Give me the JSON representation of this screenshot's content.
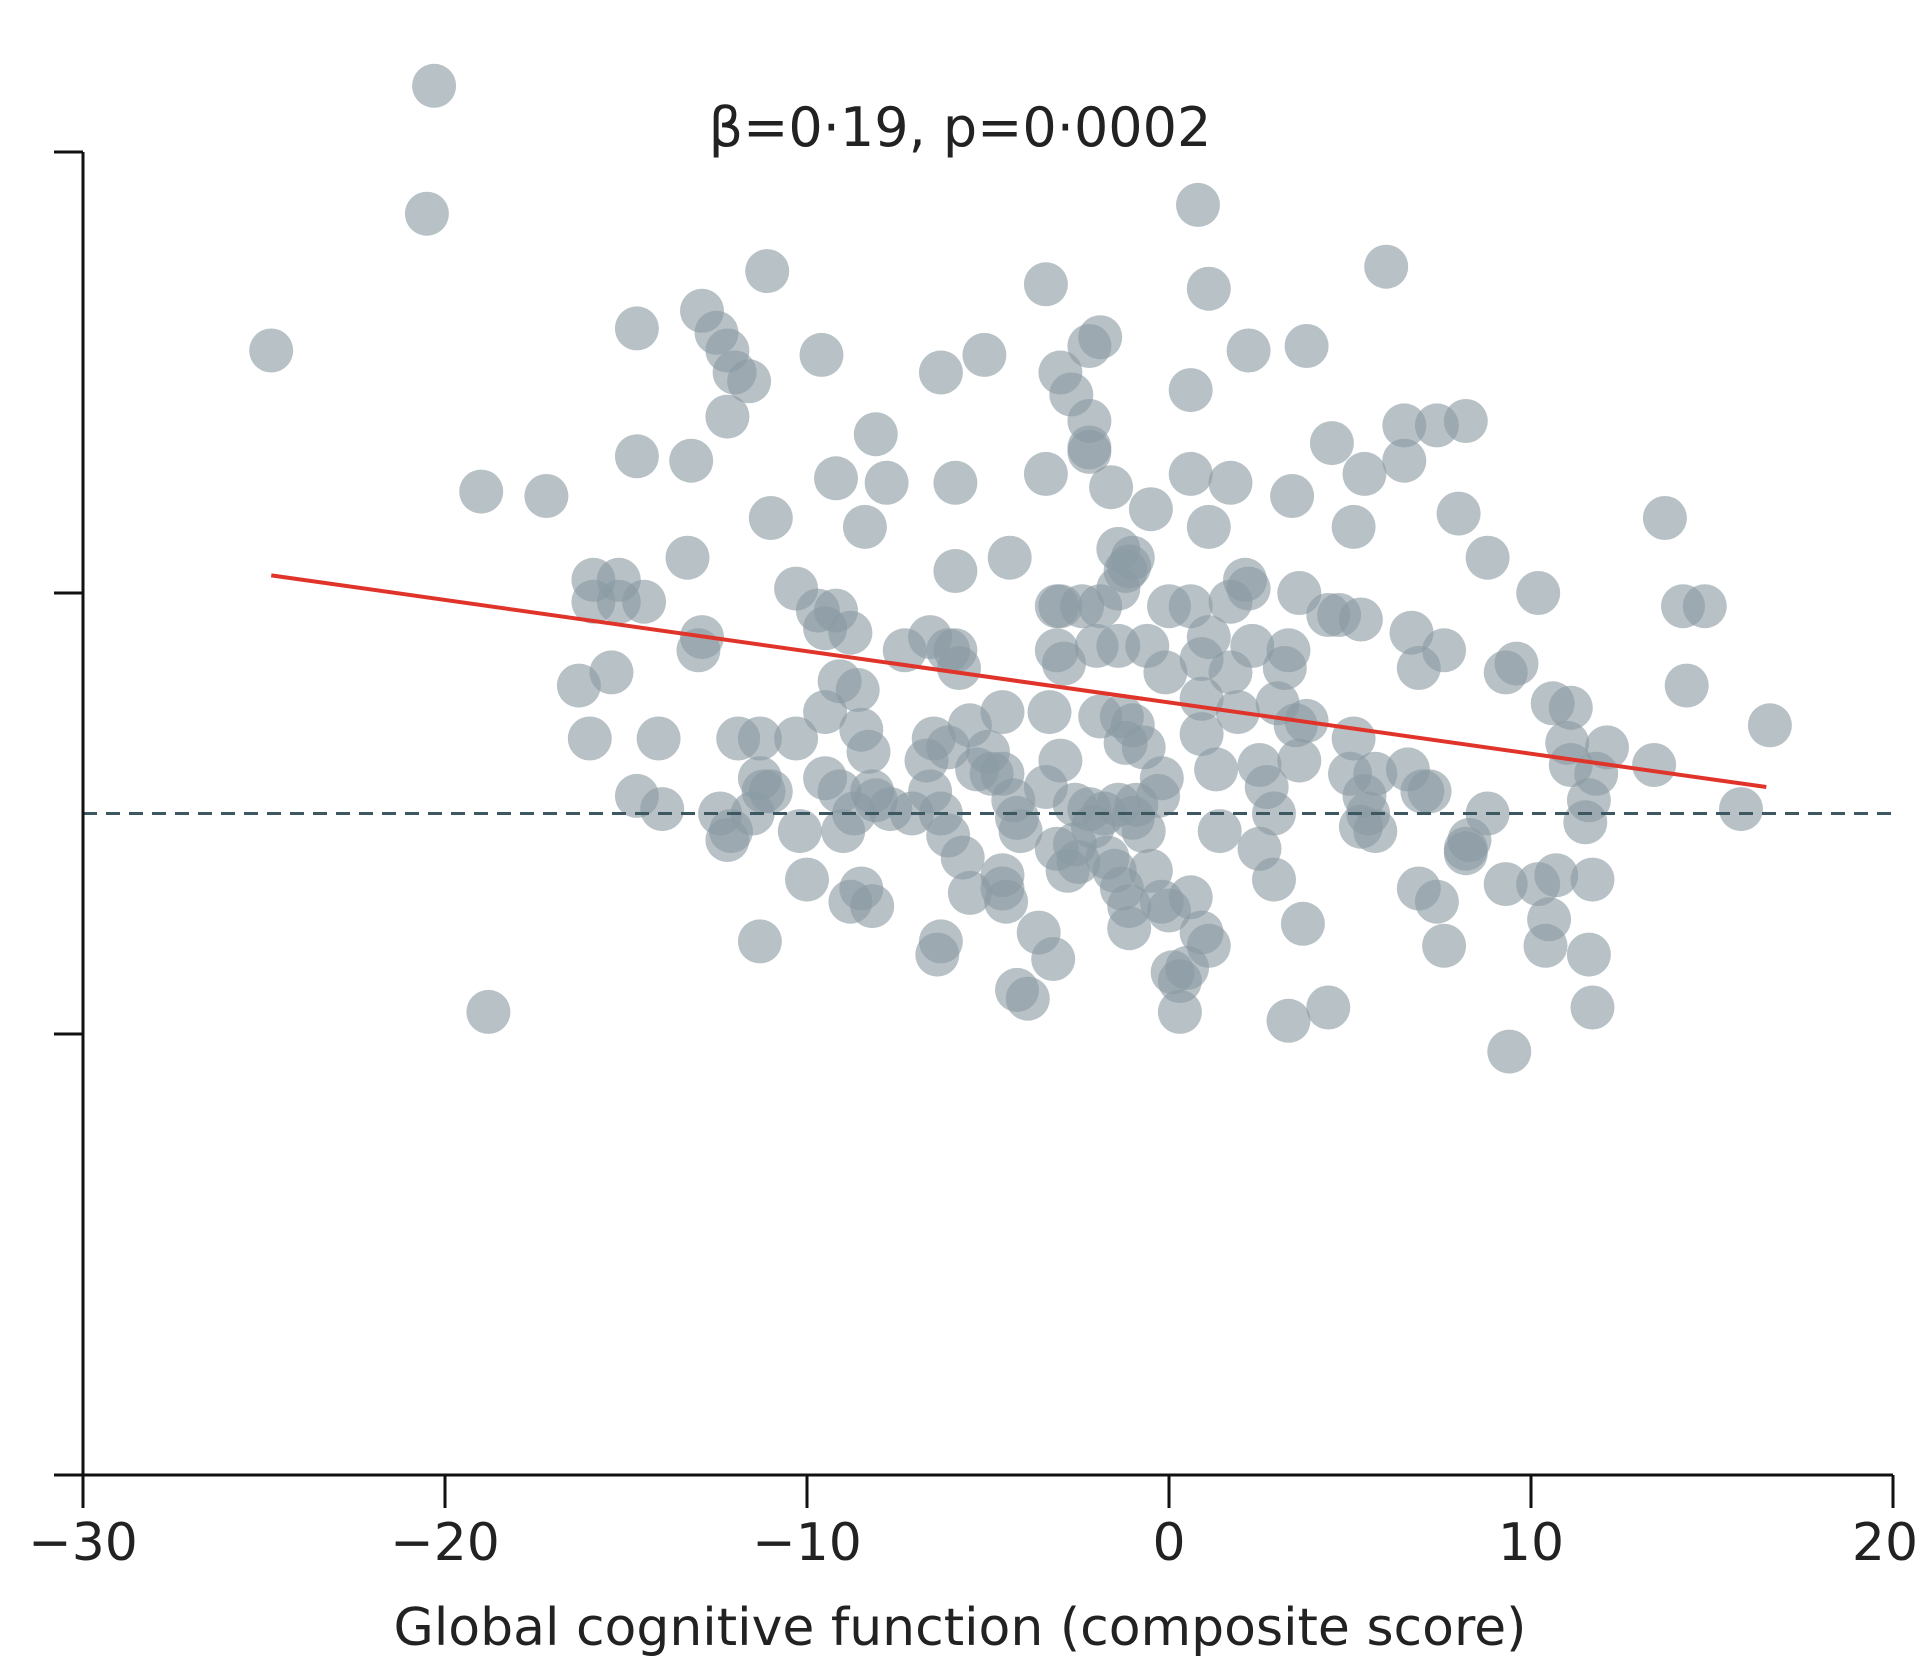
{
  "chart_data": {
    "type": "scatter",
    "title": "β=0·19, p=0·0002",
    "xlabel": "Global cognitive function (composite score)",
    "ylabel": "",
    "xlim": [
      -30,
      20
    ],
    "ylim": [
      -1.5,
      1.5
    ],
    "xticks": [
      "−30",
      "−20",
      "−10",
      "0",
      "10",
      "20"
    ],
    "grid": false,
    "legend": "none",
    "point_color": "#8a9ba3",
    "line_color": "#e0342b",
    "reference_line_color": "#3d5860",
    "reference_line_y": 0,
    "regression_line": {
      "x": [
        -24.8,
        16.5
      ],
      "y": [
        0.54,
        0.06
      ]
    },
    "points": [
      [
        -24.8,
        1.05
      ],
      [
        -20.3,
        1.65
      ],
      [
        -20.5,
        1.36
      ],
      [
        -19,
        0.73
      ],
      [
        -17.2,
        0.72
      ],
      [
        -18.8,
        -0.45
      ],
      [
        -15.9,
        0.53
      ],
      [
        -15.2,
        0.53
      ],
      [
        -15.9,
        0.48
      ],
      [
        -15.2,
        0.48
      ],
      [
        -14.5,
        0.48
      ],
      [
        -14.7,
        0.81
      ],
      [
        -14.7,
        1.1
      ],
      [
        -13.2,
        0.8
      ],
      [
        -13.3,
        0.58
      ],
      [
        -12.9,
        0.4
      ],
      [
        -13,
        0.37
      ],
      [
        -12.9,
        1.14
      ],
      [
        -12.5,
        1.09
      ],
      [
        -12.2,
        1.05
      ],
      [
        -12,
        1.0
      ],
      [
        -11.6,
        0.98
      ],
      [
        -12.2,
        0.9
      ],
      [
        -11.1,
        1.23
      ],
      [
        -11,
        0.67
      ],
      [
        -16.3,
        0.29
      ],
      [
        -16,
        0.17
      ],
      [
        -15.4,
        0.32
      ],
      [
        -14.7,
        0.04
      ],
      [
        -14,
        0.01
      ],
      [
        -14.1,
        0.17
      ],
      [
        -12.4,
        0.0
      ],
      [
        -12.1,
        -0.04
      ],
      [
        -12.2,
        -0.06
      ],
      [
        -11.9,
        0.17
      ],
      [
        -11.3,
        0.17
      ],
      [
        -11.3,
        0.08
      ],
      [
        -11.2,
        0.05
      ],
      [
        -11,
        0.05
      ],
      [
        -10.3,
        0.17
      ],
      [
        -11.5,
        0.0
      ],
      [
        -10.2,
        -0.04
      ],
      [
        -10,
        -0.15
      ],
      [
        -11.3,
        -0.29
      ],
      [
        -10.3,
        0.51
      ],
      [
        -9.7,
        0.46
      ],
      [
        -9.5,
        0.42
      ],
      [
        -9.2,
        0.46
      ],
      [
        -8.8,
        0.41
      ],
      [
        -9.5,
        0.23
      ],
      [
        -9.1,
        0.3
      ],
      [
        -8.6,
        0.28
      ],
      [
        -9.5,
        0.08
      ],
      [
        -9.1,
        0.05
      ],
      [
        -8.7,
        0.0
      ],
      [
        -9,
        -0.04
      ],
      [
        -8.5,
        0.19
      ],
      [
        -8.3,
        0.14
      ],
      [
        -8.2,
        0.05
      ],
      [
        -8.1,
        0.03
      ],
      [
        -7.7,
        0.01
      ],
      [
        -8.5,
        -0.17
      ],
      [
        -8.8,
        -0.2
      ],
      [
        -8.2,
        -0.21
      ],
      [
        -9.6,
        1.04
      ],
      [
        -9.2,
        0.76
      ],
      [
        -8.4,
        0.65
      ],
      [
        -8.1,
        0.86
      ],
      [
        -7.8,
        0.75
      ],
      [
        -7.3,
        0.37
      ],
      [
        -6.6,
        0.4
      ],
      [
        -6.1,
        0.37
      ],
      [
        -5.8,
        0.33
      ],
      [
        -6.5,
        0.17
      ],
      [
        -6.7,
        0.12
      ],
      [
        -6.6,
        0.05
      ],
      [
        -6.3,
        0.0
      ],
      [
        -6.1,
        -0.05
      ],
      [
        -7.1,
        0.0
      ],
      [
        -6.1,
        0.15
      ],
      [
        -5.5,
        0.2
      ],
      [
        -5.3,
        0.1
      ],
      [
        -5,
        0.14
      ],
      [
        -4.6,
        0.23
      ],
      [
        -4.9,
        0.09
      ],
      [
        -4.6,
        0.09
      ],
      [
        -4.3,
        0.03
      ],
      [
        -4.2,
        -0.01
      ],
      [
        -4.1,
        -0.04
      ],
      [
        -5.7,
        -0.1
      ],
      [
        -5.5,
        -0.18
      ],
      [
        -4.6,
        -0.14
      ],
      [
        -4.6,
        -0.17
      ],
      [
        -4.5,
        -0.2
      ],
      [
        -6.3,
        -0.29
      ],
      [
        -6.4,
        -0.32
      ],
      [
        -4.2,
        -0.4
      ],
      [
        -3.9,
        -0.42
      ],
      [
        -3.6,
        -0.27
      ],
      [
        -3.2,
        -0.33
      ],
      [
        -6.3,
        1.0
      ],
      [
        -5.9,
        0.75
      ],
      [
        -5.9,
        0.55
      ],
      [
        -5.9,
        0.37
      ],
      [
        -4.4,
        0.58
      ],
      [
        -5.1,
        1.04
      ],
      [
        -3.4,
        1.2
      ],
      [
        -3.4,
        0.77
      ],
      [
        -3,
        1.0
      ],
      [
        -2.7,
        0.95
      ],
      [
        -2.2,
        1.06
      ],
      [
        -1.9,
        1.08
      ],
      [
        -2.2,
        0.89
      ],
      [
        -2.2,
        0.83
      ],
      [
        -2.2,
        0.82
      ],
      [
        -1.6,
        0.74
      ],
      [
        -1.4,
        0.6
      ],
      [
        -0.5,
        0.69
      ],
      [
        -1.2,
        0.55
      ],
      [
        -1.4,
        0.51
      ],
      [
        -1.1,
        0.56
      ],
      [
        -1,
        0.58
      ],
      [
        -1.9,
        0.47
      ],
      [
        -2.4,
        0.47
      ],
      [
        -3.1,
        0.47
      ],
      [
        -3,
        0.47
      ],
      [
        -3.1,
        0.37
      ],
      [
        -2.9,
        0.34
      ],
      [
        -2,
        0.38
      ],
      [
        -1.4,
        0.38
      ],
      [
        -0.6,
        0.38
      ],
      [
        -3.4,
        0.06
      ],
      [
        -3,
        0.12
      ],
      [
        -3.3,
        0.23
      ],
      [
        -2.6,
        0.02
      ],
      [
        -2.2,
        0.01
      ],
      [
        -1.8,
        0.0
      ],
      [
        -1.4,
        0.02
      ],
      [
        -2.1,
        -0.03
      ],
      [
        -1,
        -0.01
      ],
      [
        -0.9,
        0.02
      ],
      [
        -0.7,
        -0.04
      ],
      [
        -2.5,
        -0.11
      ],
      [
        -1.9,
        0.22
      ],
      [
        -1.3,
        0.22
      ],
      [
        -1,
        0.2
      ],
      [
        -1.2,
        0.16
      ],
      [
        -0.7,
        0.15
      ],
      [
        -0.3,
        0.04
      ],
      [
        -0.2,
        0.08
      ],
      [
        -0.5,
        -0.13
      ],
      [
        -3.1,
        -0.08
      ],
      [
        -2.8,
        -0.13
      ],
      [
        -2.6,
        -0.07
      ],
      [
        -1.7,
        -0.1
      ],
      [
        -1.5,
        -0.13
      ],
      [
        -1.3,
        -0.17
      ],
      [
        -1.1,
        -0.21
      ],
      [
        -1.1,
        -0.26
      ],
      [
        -0.2,
        -0.2
      ],
      [
        0,
        -0.22
      ],
      [
        0.6,
        -0.19
      ],
      [
        0.9,
        -0.27
      ],
      [
        1.1,
        -0.3
      ],
      [
        0.5,
        -0.35
      ],
      [
        0.3,
        -0.38
      ],
      [
        0.3,
        -0.45
      ],
      [
        0.1,
        -0.36
      ],
      [
        -0.1,
        0.32
      ],
      [
        0,
        0.47
      ],
      [
        0.6,
        0.47
      ],
      [
        1.1,
        0.4
      ],
      [
        0.9,
        0.35
      ],
      [
        0.9,
        0.26
      ],
      [
        0.9,
        0.18
      ],
      [
        1.3,
        0.1
      ],
      [
        1.7,
        0.32
      ],
      [
        1.9,
        0.23
      ],
      [
        2.2,
        0.51
      ],
      [
        2.3,
        0.38
      ],
      [
        2.5,
        0.11
      ],
      [
        2.7,
        0.06
      ],
      [
        3,
        0.25
      ],
      [
        3.3,
        0.37
      ],
      [
        3.2,
        0.33
      ],
      [
        3.5,
        0.2
      ],
      [
        3.8,
        0.21
      ],
      [
        3.6,
        0.12
      ],
      [
        2.9,
        0.0
      ],
      [
        2.5,
        -0.08
      ],
      [
        2.9,
        -0.15
      ],
      [
        1.4,
        -0.04
      ],
      [
        3.7,
        -0.25
      ],
      [
        3.3,
        -0.47
      ],
      [
        4.4,
        -0.44
      ],
      [
        2.1,
        0.53
      ],
      [
        1.7,
        0.48
      ],
      [
        3.6,
        0.5
      ],
      [
        1.7,
        0.75
      ],
      [
        1.1,
        0.65
      ],
      [
        0.6,
        0.77
      ],
      [
        0.6,
        0.96
      ],
      [
        0.8,
        1.38
      ],
      [
        1.1,
        1.19
      ],
      [
        2.2,
        1.05
      ],
      [
        3.4,
        0.72
      ],
      [
        3.8,
        1.06
      ],
      [
        4.5,
        0.84
      ],
      [
        5.4,
        0.77
      ],
      [
        5.1,
        0.65
      ],
      [
        6,
        1.24
      ],
      [
        6.5,
        0.8
      ],
      [
        6.5,
        0.88
      ],
      [
        7.4,
        0.88
      ],
      [
        8.2,
        0.89
      ],
      [
        4.4,
        0.45
      ],
      [
        4.7,
        0.45
      ],
      [
        5.3,
        0.44
      ],
      [
        6.7,
        0.41
      ],
      [
        6.9,
        0.33
      ],
      [
        7.6,
        0.37
      ],
      [
        8,
        0.68
      ],
      [
        8.8,
        0.58
      ],
      [
        10.2,
        0.5
      ],
      [
        9.3,
        0.32
      ],
      [
        9.6,
        0.34
      ],
      [
        5.1,
        0.17
      ],
      [
        5.7,
        0.09
      ],
      [
        5,
        0.09
      ],
      [
        5.4,
        0.04
      ],
      [
        5.5,
        0.0
      ],
      [
        5.3,
        -0.03
      ],
      [
        5.7,
        -0.04
      ],
      [
        6.6,
        0.1
      ],
      [
        7.2,
        0.05
      ],
      [
        7,
        0.05
      ],
      [
        8.2,
        -0.08
      ],
      [
        8.3,
        -0.06
      ],
      [
        8.2,
        -0.09
      ],
      [
        8.8,
        0.0
      ],
      [
        9.3,
        -0.16
      ],
      [
        10.2,
        -0.16
      ],
      [
        10.7,
        -0.14
      ],
      [
        10.5,
        -0.24
      ],
      [
        11.7,
        -0.15
      ],
      [
        6.9,
        -0.17
      ],
      [
        7.4,
        -0.2
      ],
      [
        7.6,
        -0.3
      ],
      [
        10.4,
        -0.3
      ],
      [
        11.6,
        -0.32
      ],
      [
        11.7,
        -0.44
      ],
      [
        9.4,
        -0.54
      ],
      [
        10.6,
        0.25
      ],
      [
        11.1,
        0.24
      ],
      [
        11.1,
        0.11
      ],
      [
        11.8,
        0.09
      ],
      [
        11.6,
        0.03
      ],
      [
        11.5,
        -0.02
      ],
      [
        12.1,
        0.15
      ],
      [
        13.4,
        0.11
      ],
      [
        13.7,
        0.67
      ],
      [
        14.2,
        0.47
      ],
      [
        14.8,
        0.47
      ],
      [
        14.3,
        0.29
      ],
      [
        16.6,
        0.2
      ],
      [
        15.8,
        0.01
      ],
      [
        11,
        0.16
      ]
    ]
  }
}
